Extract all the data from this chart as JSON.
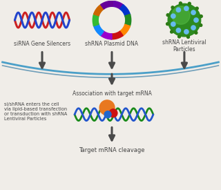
{
  "bg_color": "#f0ede8",
  "arrow_color": "#4a4a4a",
  "arc_color_top": "#4a9fc8",
  "arc_color_bot": "#1a6a9a",
  "label_color": "#444444",
  "label_fs": 5.5,
  "side_fs": 4.8,
  "labels": {
    "sirna": "siRNA Gene Silencers",
    "shrna_plasmid": "shRNA Plasmid DNA",
    "shrna_lenti": "shRNA Lentiviral\nParticles",
    "association": "Association with target mRNA",
    "side_note": "si/shRNA enters the cell\nvia lipid-based transfection\nor transduction with shRNA\nLentiviral Particles",
    "cleavage": "Target mRNA cleavage"
  }
}
